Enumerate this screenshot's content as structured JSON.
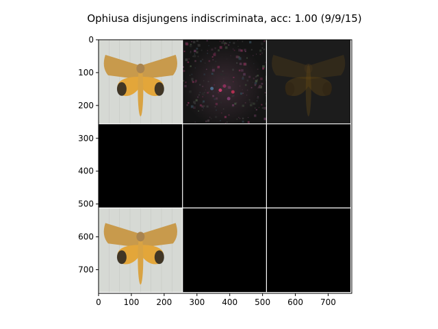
{
  "chart_data": {
    "type": "image-grid",
    "title": "Ophiusa disjungens indiscriminata, acc: 1.00 (9/9/15)",
    "xlabel": "",
    "ylabel": "",
    "grid_rows": 3,
    "grid_cols": 3,
    "tile_size": 256,
    "image_extent": [
      0,
      772
    ],
    "x_ticks": [
      0,
      100,
      200,
      300,
      400,
      500,
      600,
      700
    ],
    "y_ticks": [
      0,
      100,
      200,
      300,
      400,
      500,
      600,
      700
    ],
    "separator_color": "#ffffff",
    "cells": [
      {
        "row": 0,
        "col": 0,
        "content": "moth-photo"
      },
      {
        "row": 0,
        "col": 1,
        "content": "noisy-attribution-map"
      },
      {
        "row": 0,
        "col": 2,
        "content": "dim-moth-overlay"
      },
      {
        "row": 1,
        "col": 0,
        "content": "blank"
      },
      {
        "row": 1,
        "col": 1,
        "content": "blank"
      },
      {
        "row": 1,
        "col": 2,
        "content": "blank"
      },
      {
        "row": 2,
        "col": 0,
        "content": "moth-photo"
      },
      {
        "row": 2,
        "col": 1,
        "content": "blank"
      },
      {
        "row": 2,
        "col": 2,
        "content": "blank"
      }
    ]
  }
}
